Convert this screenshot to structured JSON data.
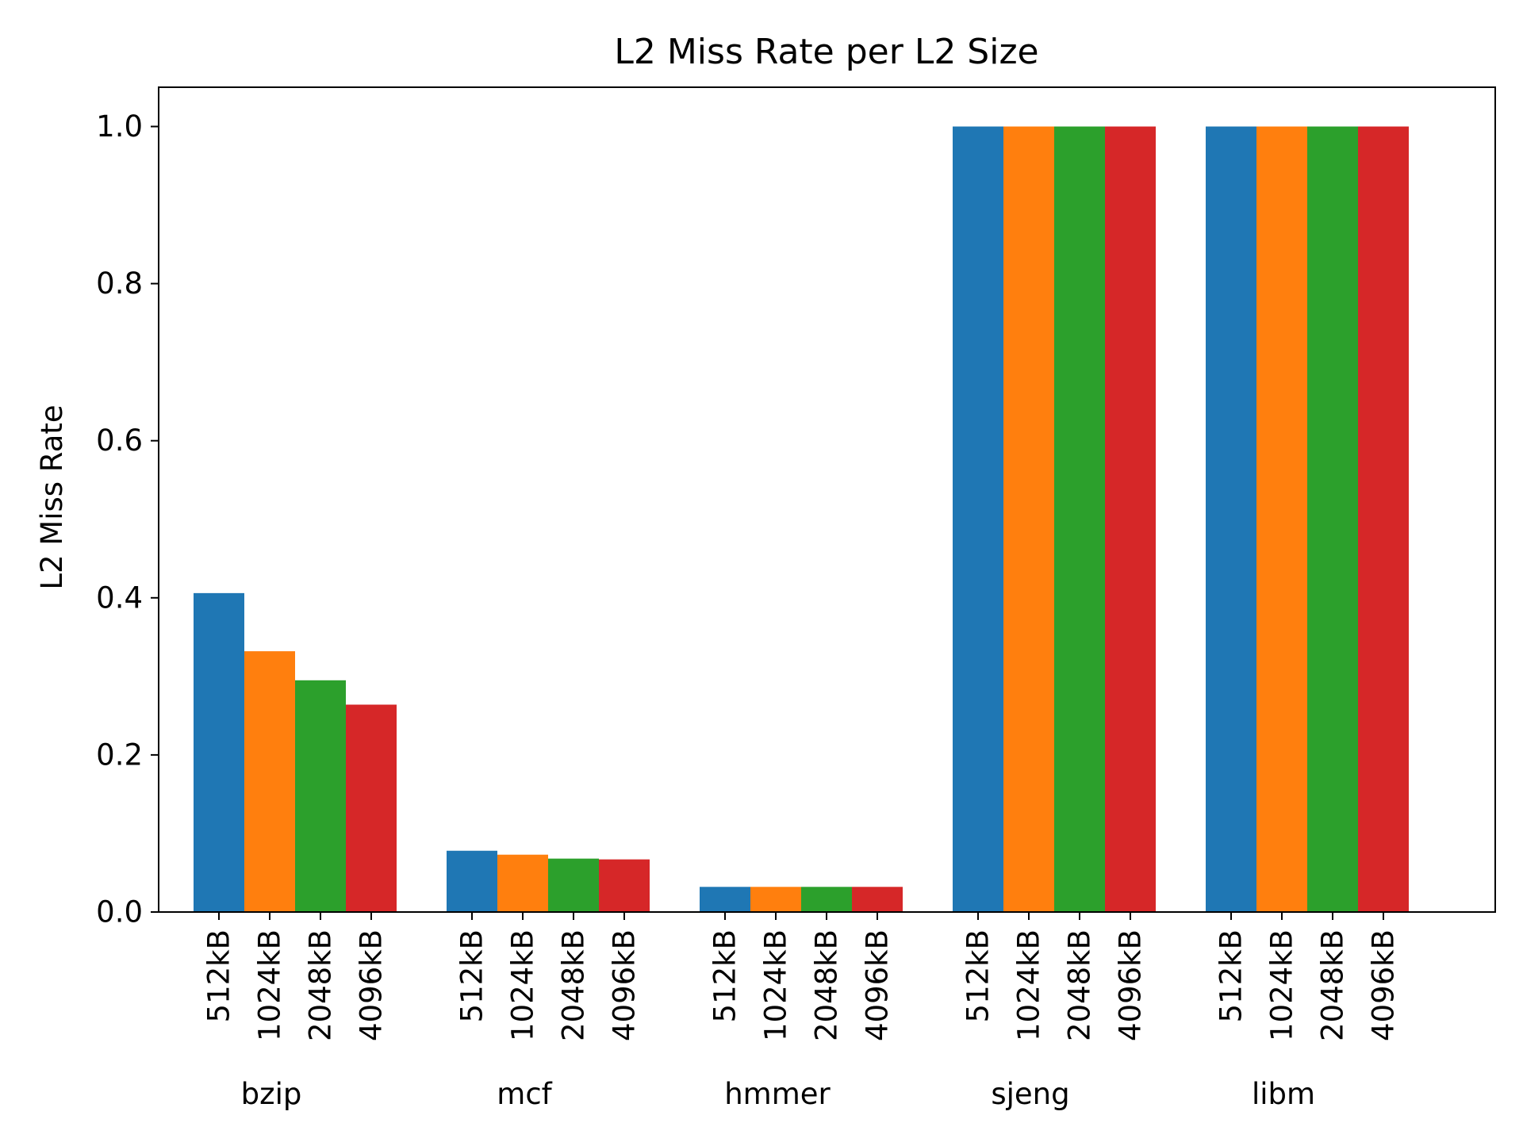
{
  "chart_data": {
    "type": "bar",
    "title": "L2 Miss Rate per L2 Size",
    "xlabel": "",
    "ylabel": "L2 Miss Rate",
    "ylim": [
      0,
      1.05
    ],
    "yticks": [
      "0.0",
      "0.2",
      "0.4",
      "0.6",
      "0.8",
      "1.0"
    ],
    "grid": false,
    "legend": "none",
    "groups": [
      "bzip",
      "mcf",
      "hmmer",
      "sjeng",
      "libm"
    ],
    "sizes": [
      "512kB",
      "1024kB",
      "2048kB",
      "4096kB"
    ],
    "series": [
      {
        "size": "512kB",
        "color": "#1f77b4",
        "values": [
          0.406,
          0.078,
          0.032,
          1.0,
          1.0
        ]
      },
      {
        "size": "1024kB",
        "color": "#ff7f0e",
        "values": [
          0.332,
          0.073,
          0.032,
          1.0,
          1.0
        ]
      },
      {
        "size": "2048kB",
        "color": "#2ca02c",
        "values": [
          0.295,
          0.068,
          0.032,
          1.0,
          1.0
        ]
      },
      {
        "size": "4096kB",
        "color": "#d62728",
        "values": [
          0.264,
          0.067,
          0.032,
          1.0,
          1.0
        ]
      }
    ]
  }
}
